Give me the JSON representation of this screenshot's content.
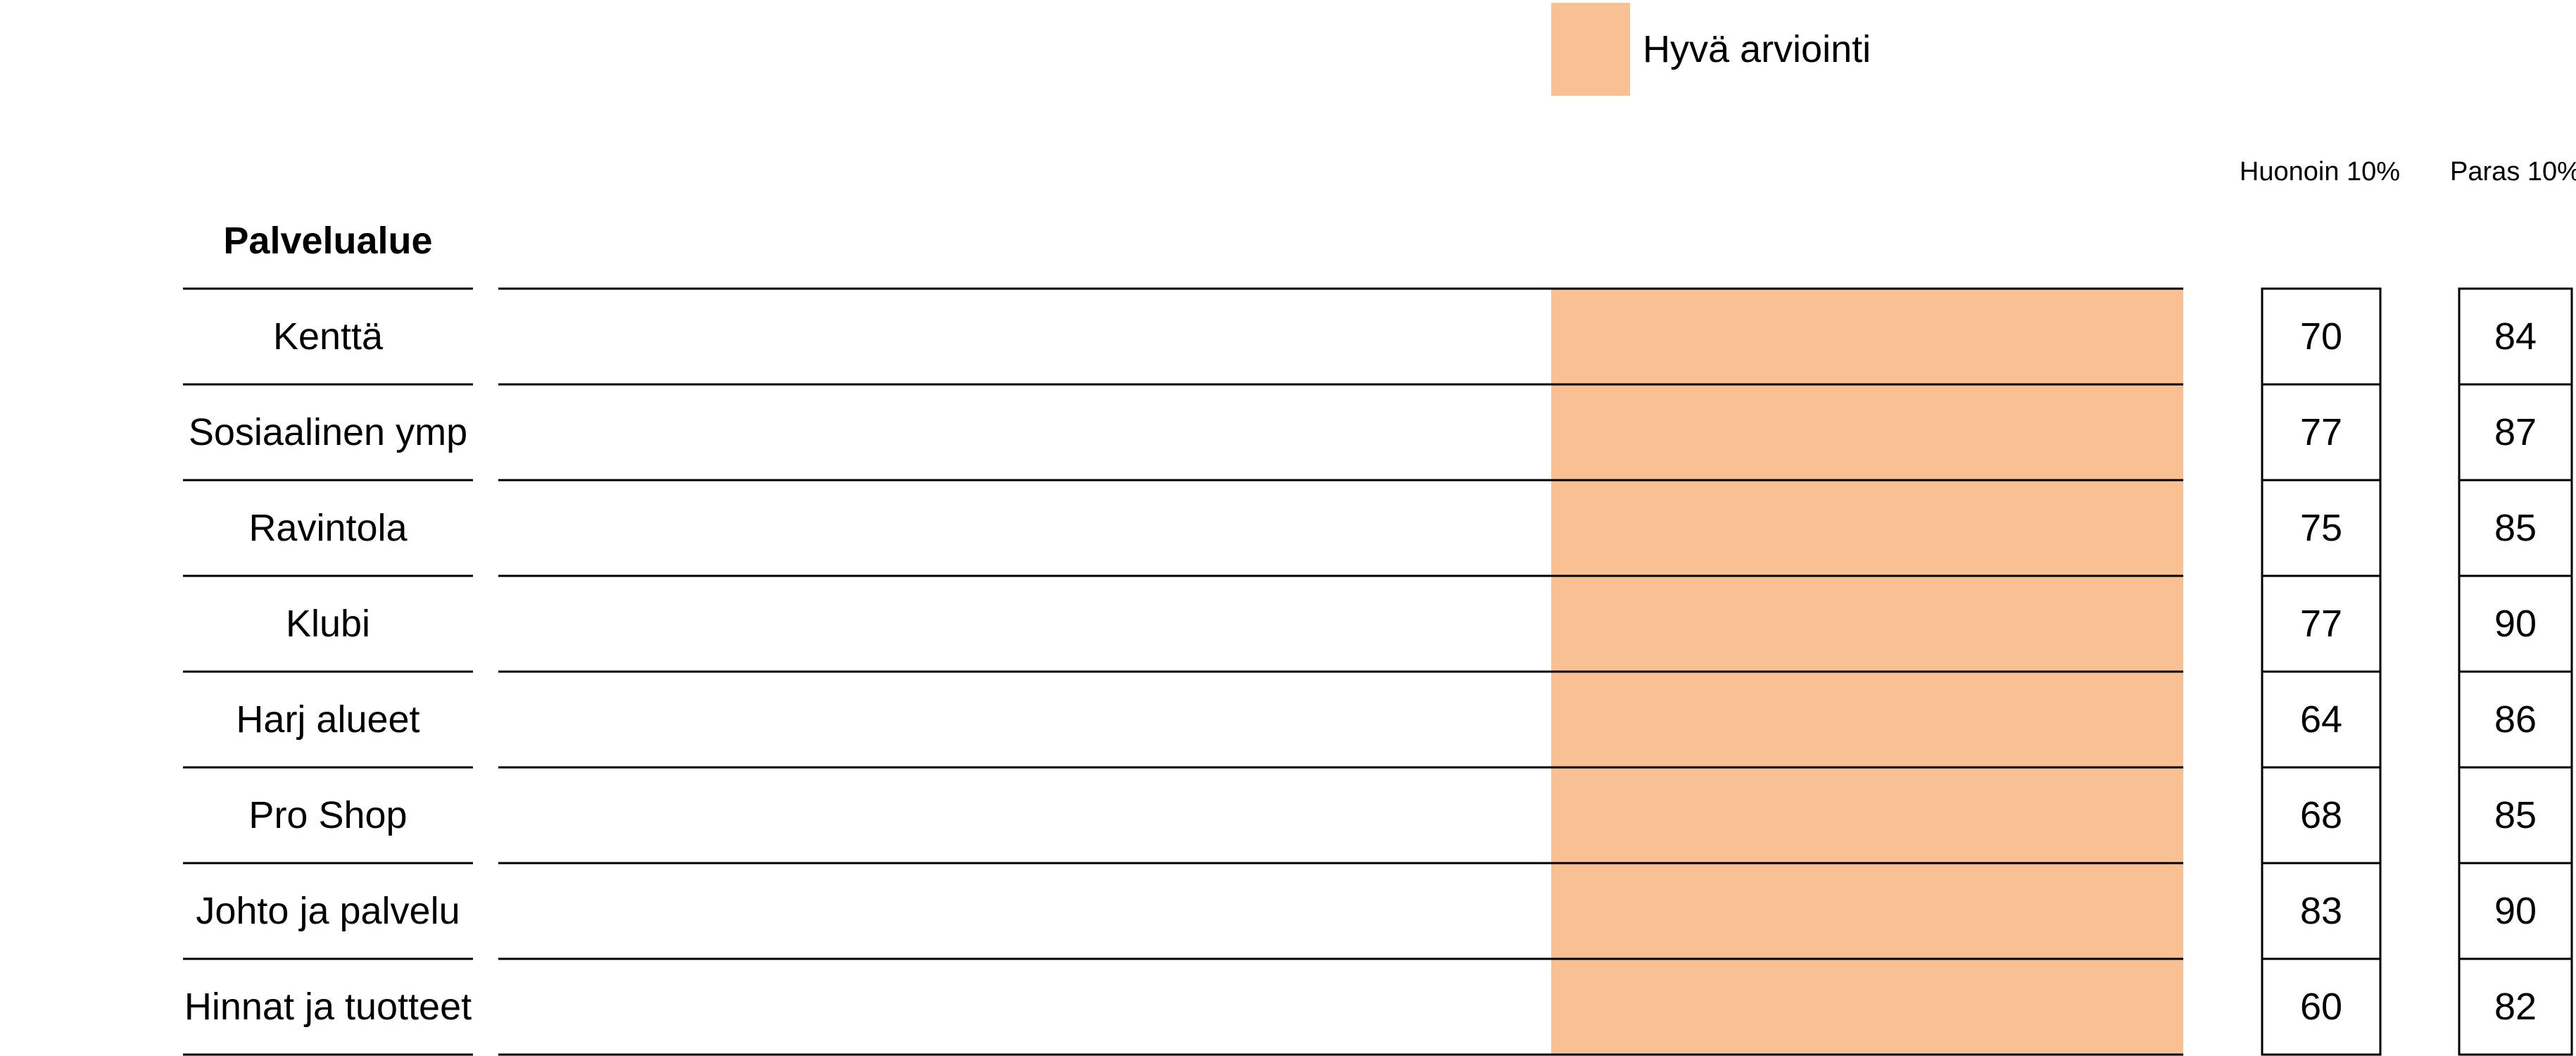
{
  "chart_data": {
    "type": "table",
    "legend": {
      "label": "Hyvä arviointi",
      "color": "#f8c093"
    },
    "column_headers": {
      "category": "Palvelualue",
      "worst": "Huonoin 10%",
      "best": "Paras 10%"
    },
    "rows": [
      {
        "category": "Kenttä",
        "worst": 70,
        "best": 84
      },
      {
        "category": "Sosiaalinen ymp",
        "worst": 77,
        "best": 87
      },
      {
        "category": "Ravintola",
        "worst": 75,
        "best": 85
      },
      {
        "category": "Klubi",
        "worst": 77,
        "best": 90
      },
      {
        "category": "Harj alueet",
        "worst": 64,
        "best": 86
      },
      {
        "category": "Pro Shop",
        "worst": 68,
        "best": 85
      },
      {
        "category": "Johto ja palvelu",
        "worst": 83,
        "best": 90
      },
      {
        "category": "Hinnat ja tuotteet",
        "worst": 60,
        "best": 82
      }
    ]
  }
}
